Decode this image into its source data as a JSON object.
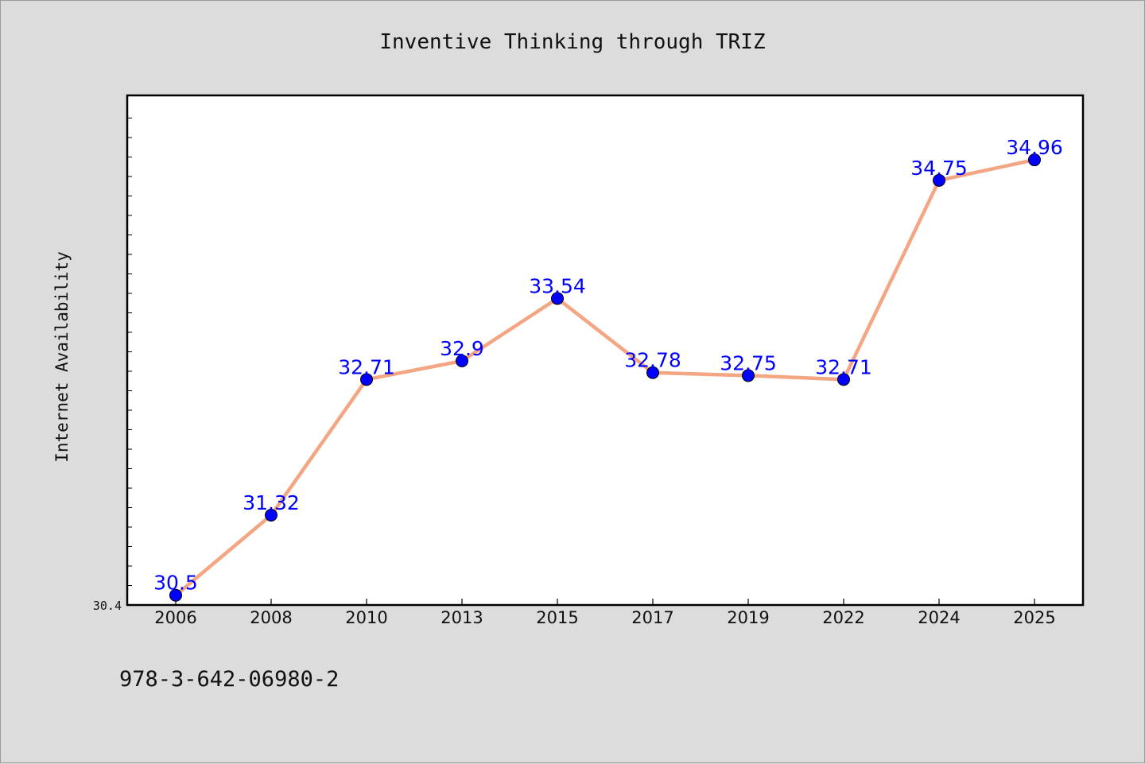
{
  "chart_data": {
    "type": "line",
    "title": "Inventive Thinking through TRIZ",
    "xlabel": "",
    "ylabel": "Internet Availability",
    "categories": [
      "2006",
      "2008",
      "2010",
      "2013",
      "2015",
      "2017",
      "2019",
      "2022",
      "2024",
      "2025"
    ],
    "series": [
      {
        "values": [
          30.5,
          31.32,
          32.71,
          32.9,
          33.54,
          32.78,
          32.75,
          32.71,
          34.75,
          34.96
        ],
        "labels": [
          "30.5",
          "31.32",
          "32.71",
          "32.9",
          "33.54",
          "32.78",
          "32.75",
          "32.71",
          "34.75",
          "34.96"
        ]
      }
    ],
    "ylim": [
      30.4,
      35.62
    ],
    "ytick_labels": [
      "30.4"
    ],
    "grid": false,
    "legend": "none",
    "colors": {
      "line": "#f4a582",
      "marker": "#0000ff",
      "data_label": "#0000ff",
      "background": "#dcdcdc",
      "plot_background": "#ffffff"
    }
  },
  "footer": {
    "isbn": "978-3-642-06980-2"
  }
}
